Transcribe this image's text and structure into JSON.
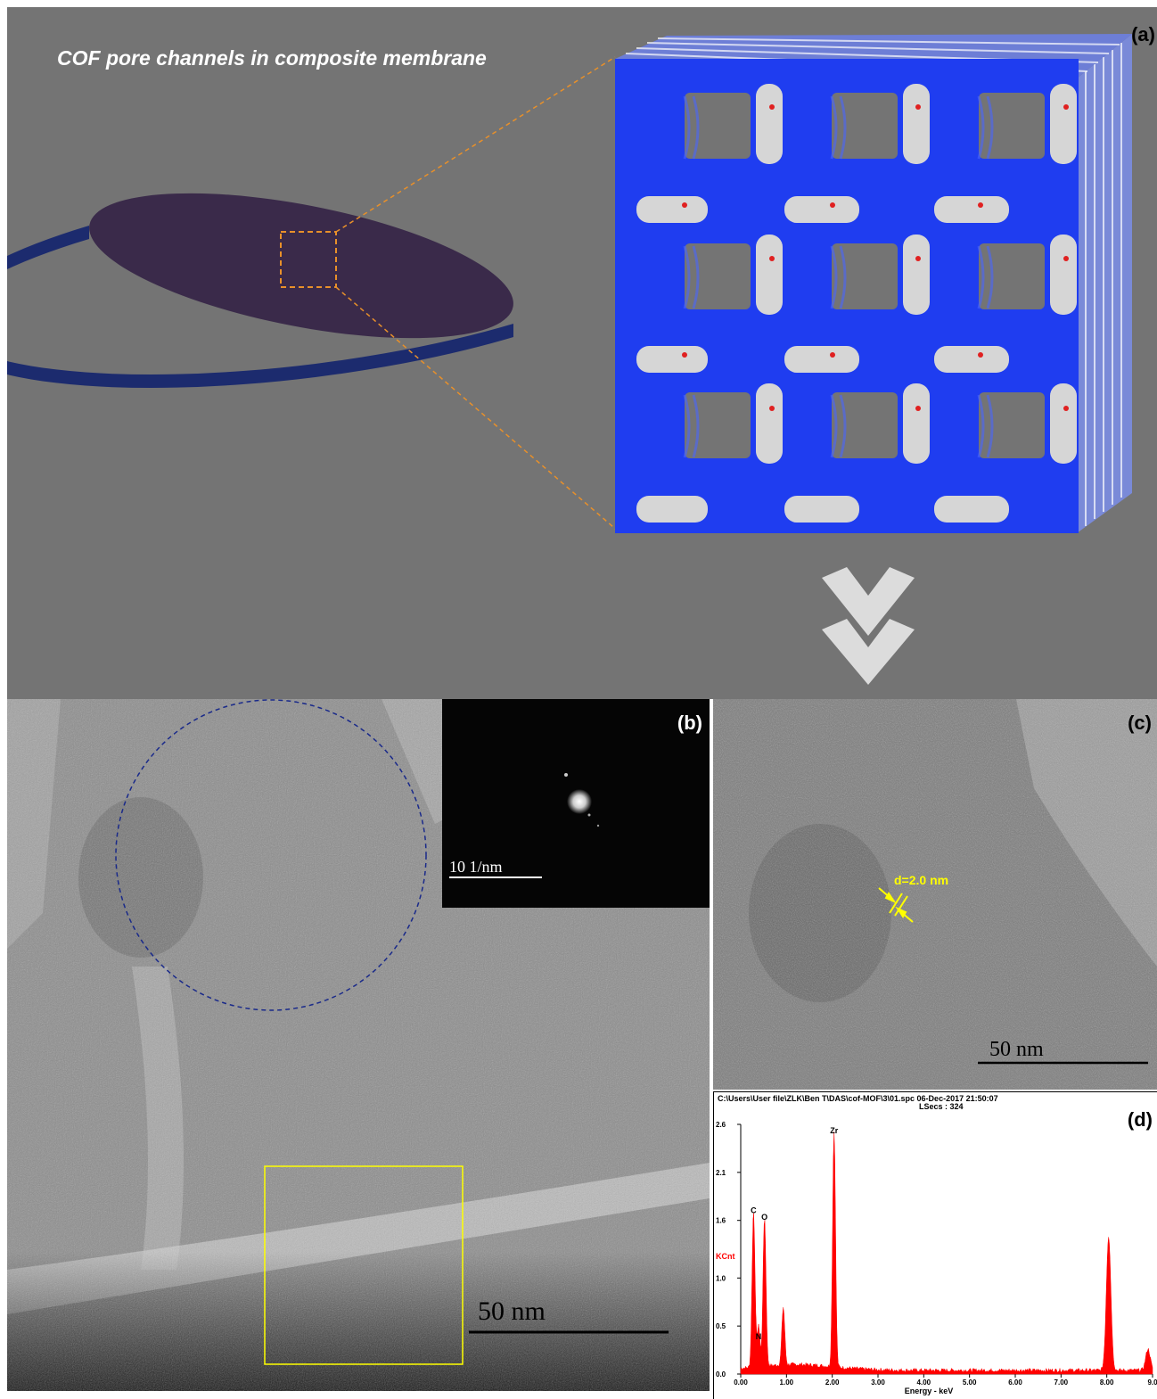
{
  "panel_a": {
    "title": "COF pore channels in composite membrane",
    "label": "(a)"
  },
  "panel_b": {
    "label": "(b)",
    "inset_scale": "10 1/nm",
    "scale": "50  nm"
  },
  "panel_c": {
    "label": "(c)",
    "d_spacing": "d=2.0 nm",
    "scale": "50  nm"
  },
  "panel_d": {
    "label": "(d)",
    "header_path": "C:\\Users\\User file\\ZLK\\Ben T\\DAS\\cof-MOF\\3\\01.spc  06-Dec-2017 21:50:07",
    "header_lsecs": "LSecs :  324",
    "chart_data": {
      "type": "line",
      "title": "",
      "xlabel": "Energy - keV",
      "ylabel": "KCnt",
      "xlim": [
        0,
        9.0
      ],
      "ylim": [
        0,
        2.6
      ],
      "x_ticks": [
        "0.00",
        "1.00",
        "2.00",
        "3.00",
        "4.00",
        "5.00",
        "6.00",
        "7.00",
        "8.00",
        "9.0"
      ],
      "y_ticks": [
        "0.0",
        "0.5",
        "1.0",
        "1.6",
        "2.1",
        "2.6"
      ],
      "peaks": [
        {
          "label": "C",
          "x": 0.28,
          "y": 1.62
        },
        {
          "label": "N",
          "x": 0.39,
          "y": 0.42
        },
        {
          "label": "O",
          "x": 0.52,
          "y": 1.55
        },
        {
          "label": "",
          "x": 0.93,
          "y": 0.6
        },
        {
          "label": "Zr",
          "x": 2.04,
          "y": 2.45
        },
        {
          "label": "",
          "x": 8.04,
          "y": 1.4
        },
        {
          "label": "",
          "x": 8.9,
          "y": 0.22
        }
      ],
      "color": "#ff0000"
    }
  },
  "colors": {
    "background_a": "#747474",
    "membrane_top": "#3a2a4a",
    "membrane_side": "#1c2b6e",
    "zoom_lines": "#e8902a",
    "cof_blue": "#1f3df0",
    "cof_surface": "#d6d6d6",
    "annotation_yellow": "#ffff00",
    "circle_blue": "#1a2a8a"
  },
  "icons": [
    "double-chevron-down-icon"
  ]
}
